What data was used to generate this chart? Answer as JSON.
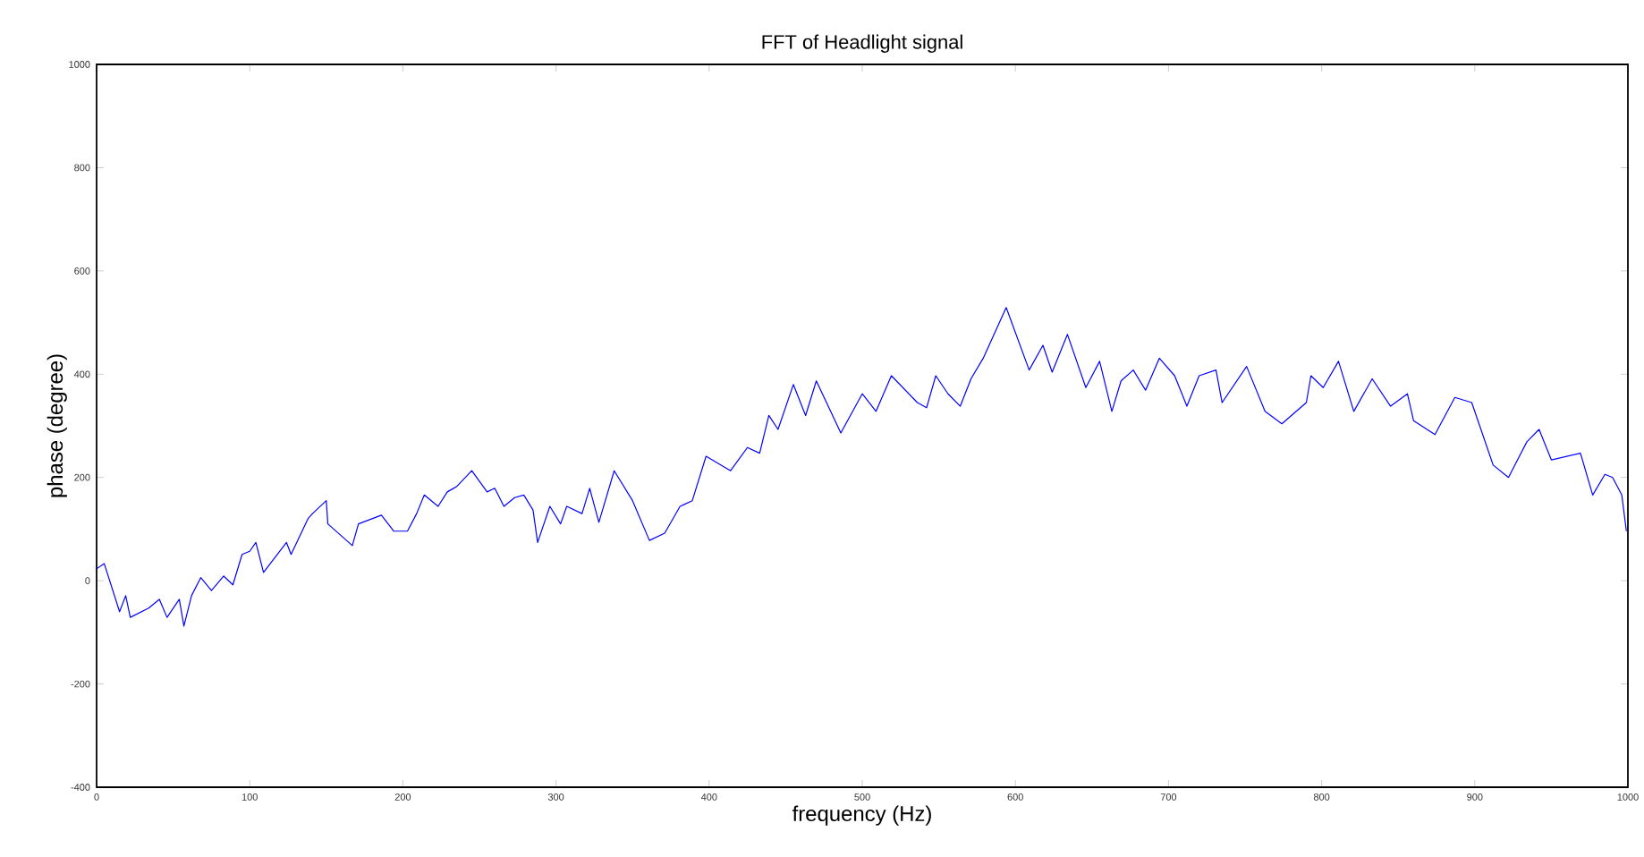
{
  "chart_data": {
    "type": "line",
    "title": "FFT of Headlight signal",
    "xlabel": "frequency (Hz)",
    "ylabel": "phase (degree)",
    "xlim": [
      0,
      1000
    ],
    "xticks": [
      0,
      100,
      200,
      300,
      400,
      500,
      600,
      700,
      800,
      900,
      1000
    ],
    "ylim": [
      -400,
      1000
    ],
    "yticks": [
      -400,
      -200,
      0,
      200,
      400,
      600,
      800,
      1000
    ],
    "grid": false,
    "marker": "none",
    "line_style": "solid",
    "series": [
      {
        "color": "#0000ff",
        "x": [
          0,
          5,
          15,
          19,
          22,
          34,
          41,
          46,
          54,
          57,
          62,
          68,
          75,
          83,
          89,
          95,
          100,
          104,
          109,
          124,
          127,
          138,
          141,
          150,
          151,
          167,
          171,
          186,
          194,
          203,
          209,
          214,
          223,
          229,
          235,
          245,
          255,
          260,
          266,
          273,
          279,
          285,
          288,
          296,
          303,
          307,
          317,
          322,
          328,
          338,
          350,
          361,
          371,
          381,
          389,
          398,
          414,
          425,
          433,
          439,
          445,
          455,
          463,
          470,
          486,
          500,
          509,
          519,
          536,
          542,
          548,
          556,
          564,
          571,
          579,
          594,
          609,
          618,
          624,
          634,
          646,
          655,
          663,
          669,
          677,
          685,
          694,
          704,
          712,
          720,
          731,
          735,
          751,
          763,
          774,
          790,
          793,
          801,
          811,
          821,
          833,
          845,
          856,
          860,
          874,
          887,
          898,
          912,
          922,
          934,
          942,
          950,
          969,
          977,
          985,
          990,
          996,
          999
        ],
        "values": [
          23,
          33,
          -60,
          -29,
          -71,
          -53,
          -36,
          -71,
          -36,
          -88,
          -29,
          6,
          -19,
          9,
          -8,
          51,
          57,
          74,
          16,
          74,
          51,
          120,
          130,
          155,
          110,
          68,
          110,
          127,
          96,
          96,
          130,
          166,
          144,
          172,
          182,
          213,
          172,
          179,
          144,
          161,
          166,
          137,
          74,
          144,
          110,
          144,
          130,
          179,
          113,
          213,
          155,
          78,
          92,
          144,
          155,
          241,
          213,
          258,
          247,
          320,
          293,
          380,
          320,
          387,
          286,
          362,
          328,
          397,
          345,
          335,
          397,
          362,
          338,
          391,
          431,
          529,
          408,
          456,
          404,
          477,
          374,
          425,
          328,
          387,
          408,
          369,
          431,
          397,
          338,
          397,
          408,
          345,
          415,
          328,
          304,
          345,
          397,
          374,
          425,
          328,
          391,
          338,
          362,
          310,
          283,
          355,
          345,
          224,
          200,
          269,
          293,
          234,
          247,
          166,
          206,
          200,
          166,
          96
        ]
      }
    ]
  }
}
